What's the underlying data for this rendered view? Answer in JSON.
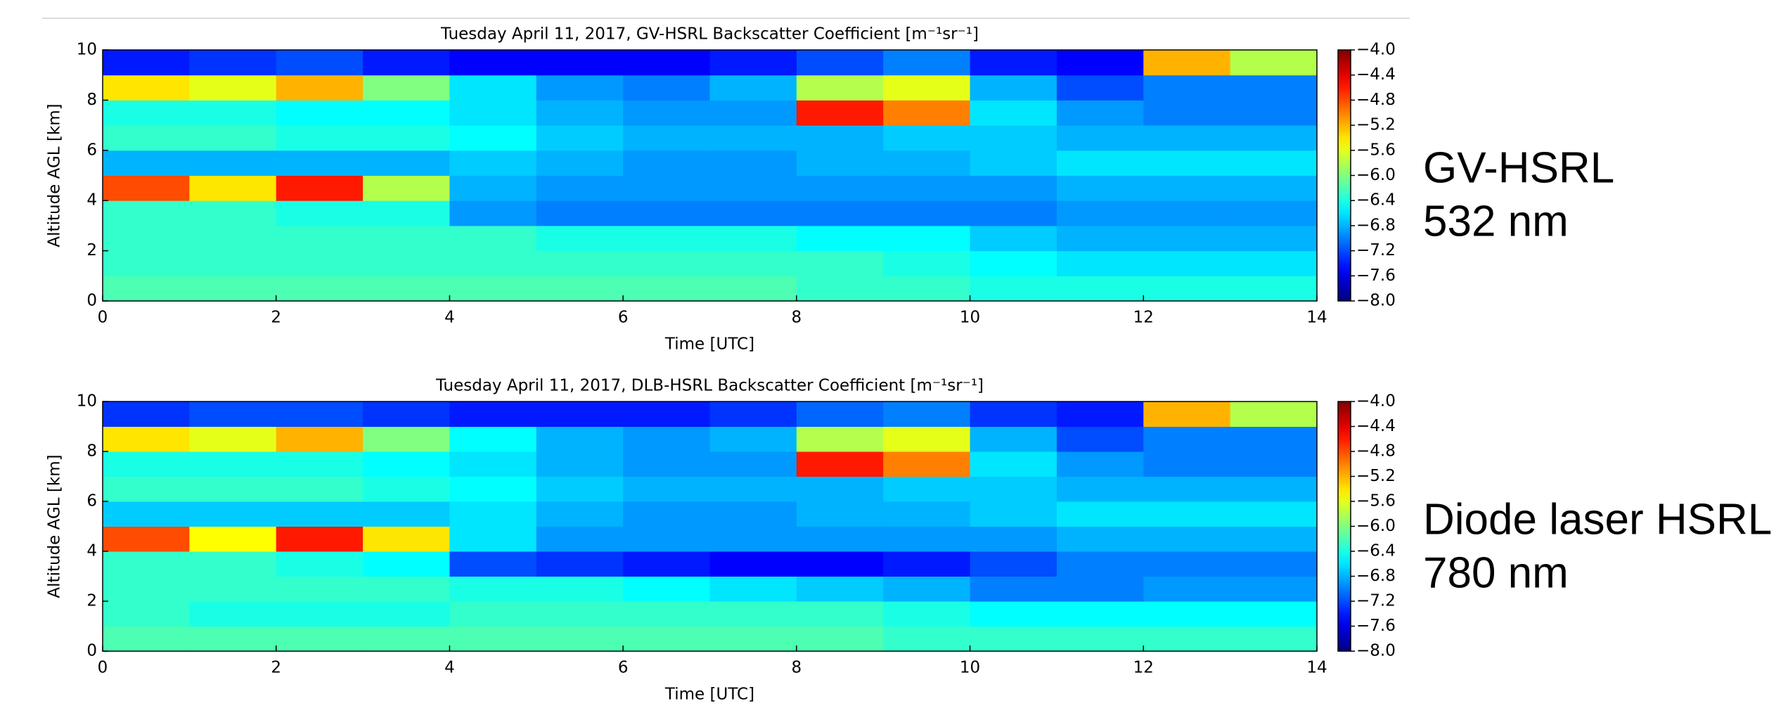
{
  "chart_data": [
    {
      "type": "heatmap",
      "title": "Tuesday April 11, 2017, GV-HSRL Backscatter Coefficient [m⁻¹sr⁻¹]",
      "annotations": [
        "GV-HSRL",
        "532 nm"
      ],
      "x_label": "Time [UTC]",
      "y_label": "Altitude AGL [km]",
      "xlim": [
        0,
        14
      ],
      "xticks": [
        0,
        2,
        4,
        6,
        8,
        10,
        12,
        14
      ],
      "ylim": [
        0,
        10
      ],
      "yticks": [
        0,
        2,
        4,
        6,
        8,
        10
      ],
      "x": [
        0.5,
        1.5,
        2.5,
        3.5,
        4.5,
        5.5,
        6.5,
        7.5,
        8.5,
        9.5,
        10.5,
        11.5,
        12.5,
        13.5
      ],
      "y": [
        0.5,
        1.5,
        2.5,
        3.5,
        4.5,
        5.5,
        6.5,
        7.5,
        8.5,
        9.5
      ],
      "values": [
        [
          -6.2,
          -6.2,
          -6.2,
          -6.2,
          -6.2,
          -6.2,
          -6.2,
          -6.2,
          -6.3,
          -6.3,
          -6.4,
          -6.4,
          -6.4,
          -6.4
        ],
        [
          -6.3,
          -6.3,
          -6.3,
          -6.3,
          -6.3,
          -6.3,
          -6.3,
          -6.3,
          -6.3,
          -6.4,
          -6.5,
          -6.6,
          -6.6,
          -6.6
        ],
        [
          -6.3,
          -6.3,
          -6.3,
          -6.3,
          -6.3,
          -6.4,
          -6.4,
          -6.4,
          -6.5,
          -6.5,
          -6.7,
          -6.8,
          -6.8,
          -6.8
        ],
        [
          -6.3,
          -6.3,
          -6.4,
          -6.4,
          -6.9,
          -7.0,
          -7.0,
          -7.0,
          -7.0,
          -7.0,
          -7.0,
          -6.9,
          -6.9,
          -6.9
        ],
        [
          -4.8,
          -5.4,
          -4.6,
          -5.8,
          -6.8,
          -6.9,
          -6.9,
          -6.9,
          -6.9,
          -6.9,
          -6.9,
          -6.8,
          -6.8,
          -6.8
        ],
        [
          -6.8,
          -6.8,
          -6.8,
          -6.8,
          -6.7,
          -6.8,
          -6.9,
          -6.9,
          -6.8,
          -6.8,
          -6.7,
          -6.6,
          -6.6,
          -6.6
        ],
        [
          -6.3,
          -6.3,
          -6.4,
          -6.4,
          -6.5,
          -6.7,
          -6.8,
          -6.8,
          -6.8,
          -6.7,
          -6.7,
          -6.8,
          -6.8,
          -6.8
        ],
        [
          -6.4,
          -6.4,
          -6.5,
          -6.5,
          -6.6,
          -6.8,
          -6.9,
          -6.9,
          -4.6,
          -5.0,
          -6.6,
          -6.9,
          -7.0,
          -7.0
        ],
        [
          -5.4,
          -5.6,
          -5.2,
          -6.0,
          -6.6,
          -6.9,
          -7.0,
          -6.8,
          -5.8,
          -5.6,
          -6.8,
          -7.2,
          -7.0,
          -7.0
        ],
        [
          -7.4,
          -7.3,
          -7.2,
          -7.4,
          -7.5,
          -7.5,
          -7.5,
          -7.4,
          -7.2,
          -7.0,
          -7.4,
          -7.5,
          -5.2,
          -5.8
        ]
      ],
      "colormap": "jet",
      "clim": [
        -8,
        -4
      ],
      "cticks": [
        {
          "value": -4,
          "label": "−4.0"
        },
        {
          "value": -4.4,
          "label": "−4.4"
        },
        {
          "value": -4.8,
          "label": "−4.8"
        },
        {
          "value": -5.2,
          "label": "−5.2"
        },
        {
          "value": -5.6,
          "label": "−5.6"
        },
        {
          "value": -6,
          "label": "−6.0"
        },
        {
          "value": -6.4,
          "label": "−6.4"
        },
        {
          "value": -6.8,
          "label": "−6.8"
        },
        {
          "value": -7.2,
          "label": "−7.2"
        },
        {
          "value": -7.6,
          "label": "−7.6"
        },
        {
          "value": -8,
          "label": "−8.0"
        }
      ]
    },
    {
      "type": "heatmap",
      "title": "Tuesday April 11, 2017, DLB-HSRL Backscatter Coefficient [m⁻¹sr⁻¹]",
      "annotations": [
        "Diode laser HSRL",
        "780 nm"
      ],
      "x_label": "Time [UTC]",
      "y_label": "Altitude AGL [km]",
      "xlim": [
        0,
        14
      ],
      "xticks": [
        0,
        2,
        4,
        6,
        8,
        10,
        12,
        14
      ],
      "ylim": [
        0,
        10
      ],
      "yticks": [
        0,
        2,
        4,
        6,
        8,
        10
      ],
      "x": [
        0.5,
        1.5,
        2.5,
        3.5,
        4.5,
        5.5,
        6.5,
        7.5,
        8.5,
        9.5,
        10.5,
        11.5,
        12.5,
        13.5
      ],
      "y": [
        0.5,
        1.5,
        2.5,
        3.5,
        4.5,
        5.5,
        6.5,
        7.5,
        8.5,
        9.5
      ],
      "values": [
        [
          -6.2,
          -6.2,
          -6.2,
          -6.2,
          -6.2,
          -6.2,
          -6.2,
          -6.2,
          -6.2,
          -6.3,
          -6.3,
          -6.3,
          -6.3,
          -6.3
        ],
        [
          -6.3,
          -6.4,
          -6.4,
          -6.4,
          -6.3,
          -6.3,
          -6.3,
          -6.3,
          -6.3,
          -6.4,
          -6.5,
          -6.5,
          -6.5,
          -6.5
        ],
        [
          -6.3,
          -6.3,
          -6.3,
          -6.3,
          -6.4,
          -6.4,
          -6.5,
          -6.6,
          -6.7,
          -6.8,
          -7.0,
          -7.0,
          -6.9,
          -6.9
        ],
        [
          -6.3,
          -6.3,
          -6.4,
          -6.5,
          -7.2,
          -7.3,
          -7.4,
          -7.5,
          -7.5,
          -7.4,
          -7.2,
          -7.0,
          -7.0,
          -7.0
        ],
        [
          -4.8,
          -5.5,
          -4.6,
          -5.4,
          -6.6,
          -6.9,
          -6.9,
          -6.9,
          -6.9,
          -6.9,
          -6.9,
          -6.8,
          -6.8,
          -6.8
        ],
        [
          -6.7,
          -6.7,
          -6.7,
          -6.7,
          -6.6,
          -6.8,
          -6.9,
          -6.9,
          -6.8,
          -6.8,
          -6.7,
          -6.6,
          -6.6,
          -6.6
        ],
        [
          -6.3,
          -6.3,
          -6.3,
          -6.4,
          -6.5,
          -6.7,
          -6.8,
          -6.8,
          -6.8,
          -6.7,
          -6.7,
          -6.8,
          -6.8,
          -6.8
        ],
        [
          -6.4,
          -6.4,
          -6.4,
          -6.5,
          -6.6,
          -6.8,
          -6.9,
          -6.9,
          -4.6,
          -5.0,
          -6.6,
          -6.9,
          -7.0,
          -7.0
        ],
        [
          -5.4,
          -5.6,
          -5.2,
          -6.0,
          -6.5,
          -6.8,
          -6.9,
          -6.8,
          -5.8,
          -5.6,
          -6.8,
          -7.2,
          -7.0,
          -7.0
        ],
        [
          -7.3,
          -7.2,
          -7.2,
          -7.3,
          -7.4,
          -7.4,
          -7.4,
          -7.3,
          -7.1,
          -7.0,
          -7.3,
          -7.4,
          -5.2,
          -5.8
        ]
      ],
      "colormap": "jet",
      "clim": [
        -8,
        -4
      ],
      "cticks": [
        {
          "value": -4,
          "label": "−4.0"
        },
        {
          "value": -4.4,
          "label": "−4.4"
        },
        {
          "value": -4.8,
          "label": "−4.8"
        },
        {
          "value": -5.2,
          "label": "−5.2"
        },
        {
          "value": -5.6,
          "label": "−5.6"
        },
        {
          "value": -6,
          "label": "−6.0"
        },
        {
          "value": -6.4,
          "label": "−6.4"
        },
        {
          "value": -6.8,
          "label": "−6.8"
        },
        {
          "value": -7.2,
          "label": "−7.2"
        },
        {
          "value": -7.6,
          "label": "−7.6"
        },
        {
          "value": -8,
          "label": "−8.0"
        }
      ]
    }
  ]
}
